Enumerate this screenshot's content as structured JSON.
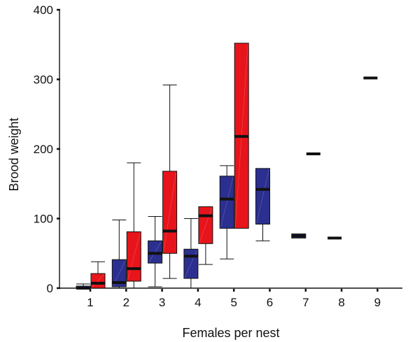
{
  "chart_data": {
    "type": "boxplot",
    "xlabel": "Females per nest",
    "ylabel": "Brood weight",
    "ylim": [
      0,
      400
    ],
    "yticks": [
      0,
      100,
      200,
      300,
      400
    ],
    "categories": [
      "1",
      "2",
      "3",
      "4",
      "5",
      "6",
      "7",
      "8",
      "9"
    ],
    "grid": false,
    "colors": {
      "blue": "#2b2f8f",
      "red": "#e8141b",
      "outline": "#111111"
    },
    "series": [
      {
        "color_key": "blue",
        "boxes": [
          {
            "category": "1",
            "min": 0,
            "q1": 0,
            "median": 0,
            "q3": 3,
            "max": 6
          },
          {
            "category": "2",
            "min": 0,
            "q1": 2,
            "median": 8,
            "q3": 41,
            "max": 98
          },
          {
            "category": "3",
            "min": 2,
            "q1": 36,
            "median": 50,
            "q3": 68,
            "max": 103
          },
          {
            "category": "4",
            "min": 0,
            "q1": 14,
            "median": 46,
            "q3": 56,
            "max": 100
          },
          {
            "category": "5",
            "min": 42,
            "q1": 86,
            "median": 128,
            "q3": 161,
            "max": 176
          },
          {
            "category": "6",
            "min": 68,
            "q1": 92,
            "median": 142,
            "q3": 172,
            "max": 172
          },
          {
            "category": "7",
            "min": 72,
            "q1": 72,
            "median": 75,
            "q3": 78,
            "max": 78
          },
          {
            "category": "8",
            "min": 72,
            "q1": 72,
            "median": 72,
            "q3": 72,
            "max": 72
          },
          {
            "category": "9",
            "min": 302,
            "q1": 302,
            "median": 302,
            "q3": 302,
            "max": 302
          }
        ]
      },
      {
        "color_key": "red",
        "boxes": [
          {
            "category": "1",
            "min": 0,
            "q1": 0,
            "median": 7,
            "q3": 21,
            "max": 38
          },
          {
            "category": "2",
            "min": 0,
            "q1": 10,
            "median": 28,
            "q3": 81,
            "max": 180
          },
          {
            "category": "3",
            "min": 14,
            "q1": 50,
            "median": 82,
            "q3": 168,
            "max": 292
          },
          {
            "category": "4",
            "min": 34,
            "q1": 64,
            "median": 104,
            "q3": 117,
            "max": 117
          },
          {
            "category": "5",
            "min": 86,
            "q1": 86,
            "median": 218,
            "q3": 352,
            "max": 352
          },
          {
            "category": "7",
            "min": 193,
            "q1": 193,
            "median": 193,
            "q3": 193,
            "max": 193
          }
        ]
      }
    ]
  }
}
